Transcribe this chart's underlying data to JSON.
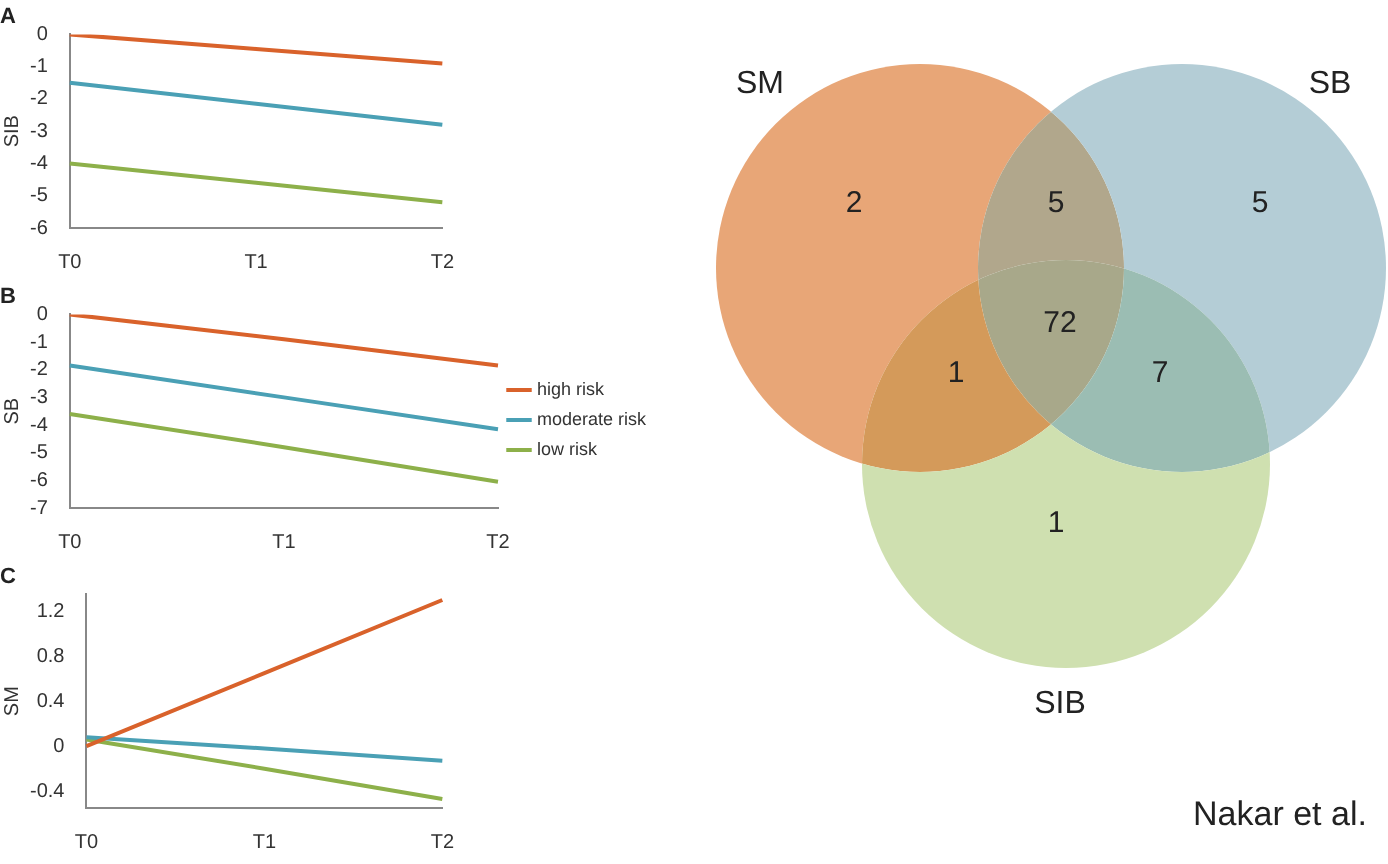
{
  "chart_data": [
    {
      "type": "line",
      "title": "A",
      "ylabel": "SIB",
      "categories": [
        "T0",
        "T1",
        "T2"
      ],
      "ylim": [
        -6,
        0
      ],
      "yticks": [
        -6,
        -5,
        -4,
        -3,
        -2,
        -1,
        0
      ],
      "grid": false,
      "legend": false,
      "marker": "none",
      "line_style": "solid",
      "series": [
        {
          "color": "#d9622b",
          "values": [
            0,
            -0.45,
            -0.9
          ]
        },
        {
          "color": "#4aa0b5",
          "values": [
            -1.5,
            -2.15,
            -2.8
          ]
        },
        {
          "color": "#8db04a",
          "values": [
            -4,
            -4.6,
            -5.2
          ]
        }
      ]
    },
    {
      "type": "line",
      "title": "B",
      "ylabel": "SB",
      "categories": [
        "T0",
        "T1",
        "T2"
      ],
      "ylim": [
        -7,
        0
      ],
      "yticks": [
        -7,
        -6,
        -5,
        -4,
        -3,
        -2,
        -1,
        0
      ],
      "grid": false,
      "legend": "right",
      "marker": "none",
      "line_style": "solid",
      "series": [
        {
          "name": "high risk",
          "color": "#d9622b",
          "values": [
            0,
            -0.9,
            -1.85
          ]
        },
        {
          "name": "moderate risk",
          "color": "#4aa0b5",
          "values": [
            -1.85,
            -3,
            -4.15
          ]
        },
        {
          "name": "low risk",
          "color": "#8db04a",
          "values": [
            -3.6,
            -4.8,
            -6.05
          ]
        }
      ]
    },
    {
      "type": "line",
      "title": "C",
      "ylabel": "SM",
      "categories": [
        "T0",
        "T1",
        "T2"
      ],
      "ylim": [
        -0.55,
        1.35
      ],
      "yticks": [
        -0.4,
        0,
        0.4,
        0.8,
        1.2
      ],
      "grid": false,
      "legend": false,
      "marker": "none",
      "line_style": "solid",
      "series": [
        {
          "color": "#d9622b",
          "values": [
            0,
            0.65,
            1.3
          ]
        },
        {
          "color": "#4aa0b5",
          "values": [
            0.08,
            -0.02,
            -0.13
          ]
        },
        {
          "color": "#8db04a",
          "values": [
            0.06,
            -0.2,
            -0.47
          ]
        }
      ]
    },
    {
      "type": "other",
      "categories": [
        null,
        null,
        null,
        null,
        null,
        null,
        null
      ],
      "colors": [
        "#e8a677",
        "#b1a78c",
        "#b4cdd6",
        "#a8a88a",
        "#d49a5a",
        "#9bbdb3",
        "#cfe0b0"
      ],
      "values": [
        2,
        5,
        5,
        72,
        1,
        7,
        1
      ],
      "data_labels": true,
      "annotations": [
        "SM",
        "SB",
        "SIB",
        "Nakar et al."
      ]
    }
  ]
}
